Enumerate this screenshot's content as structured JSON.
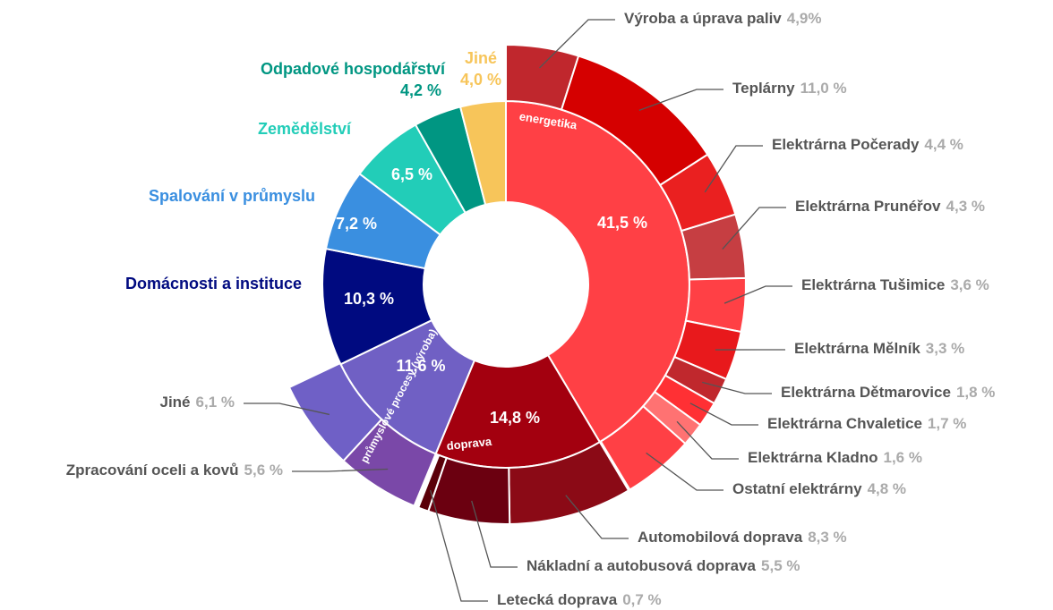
{
  "chart_data": {
    "type": "sunburst",
    "segments": [
      {
        "name": "energetika",
        "value": 41.5,
        "value_label": "41,5 %",
        "color": "#ff4045",
        "children": [
          {
            "name": "Výroba a úprava paliv",
            "value": 4.9,
            "value_label": "4,9%",
            "color": "#c0272d"
          },
          {
            "name": "Teplárny",
            "value": 11.0,
            "value_label": "11,0 %",
            "color": "#d50000"
          },
          {
            "name": "Elektrárna Počerady",
            "value": 4.4,
            "value_label": "4,4 %",
            "color": "#ea2020"
          },
          {
            "name": "Elektrárna Prunéřov",
            "value": 4.3,
            "value_label": "4,3 %",
            "color": "#c63e42"
          },
          {
            "name": "Elektrárna Tušimice",
            "value": 3.6,
            "value_label": "3,6 %",
            "color": "#ff4045"
          },
          {
            "name": "Elektrárna Mělník",
            "value": 3.3,
            "value_label": "3,3 %",
            "color": "#e8191c"
          },
          {
            "name": "Elektrárna Dětmarovice",
            "value": 1.8,
            "value_label": "1,8 %",
            "color": "#c0282d"
          },
          {
            "name": "Elektrárna Chvaletice",
            "value": 1.7,
            "value_label": "1,7 %",
            "color": "#ff3034"
          },
          {
            "name": "Elektrárna Kladno",
            "value": 1.6,
            "value_label": "1,6 %",
            "color": "#ff7272"
          },
          {
            "name": "Ostatní elektrárny",
            "value": 4.8,
            "value_label": "4,8 %",
            "color": "#ff4045"
          }
        ]
      },
      {
        "name": "doprava",
        "value": 14.8,
        "value_label": "14,8 %",
        "color": "#a3000f",
        "children": [
          {
            "name": "Automobilová doprava",
            "value": 8.3,
            "value_label": "8,3 %",
            "color": "#8b0a16"
          },
          {
            "name": "Nákladní a autobusová doprava",
            "value": 5.5,
            "value_label": "5,5 %",
            "color": "#6b0010"
          },
          {
            "name": "Letecká doprava",
            "value": 0.7,
            "value_label": "0,7 %",
            "color": "#5a0008"
          }
        ]
      },
      {
        "name": "průmyslové procesy (výroba)",
        "value": 11.6,
        "value_label": "11,6 %",
        "color": "#7060c4",
        "children": [
          {
            "name": "Zpracování oceli a kovů",
            "value": 5.6,
            "value_label": "5,6 %",
            "color": "#7a48a8"
          },
          {
            "name": "Jiné",
            "value": 6.1,
            "value_label": "6,1 %",
            "color": "#6f60c6"
          }
        ]
      },
      {
        "name": "Domácnosti a instituce",
        "value": 10.3,
        "value_label": "10,3 %",
        "color": "#000a80"
      },
      {
        "name": "Spalování v průmyslu",
        "value": 7.2,
        "value_label": "7,2 %",
        "color": "#3a8fe0"
      },
      {
        "name": "Zemědělství",
        "value": 6.5,
        "value_label": "6,5 %",
        "color": "#22cdb8"
      },
      {
        "name": "Odpadové hospodářství",
        "value": 4.2,
        "value_label": "4,2 %",
        "color": "#009682"
      },
      {
        "name": "Jiné",
        "value": 4.0,
        "value_label": "4,0 %",
        "color": "#f7c55a"
      }
    ]
  }
}
